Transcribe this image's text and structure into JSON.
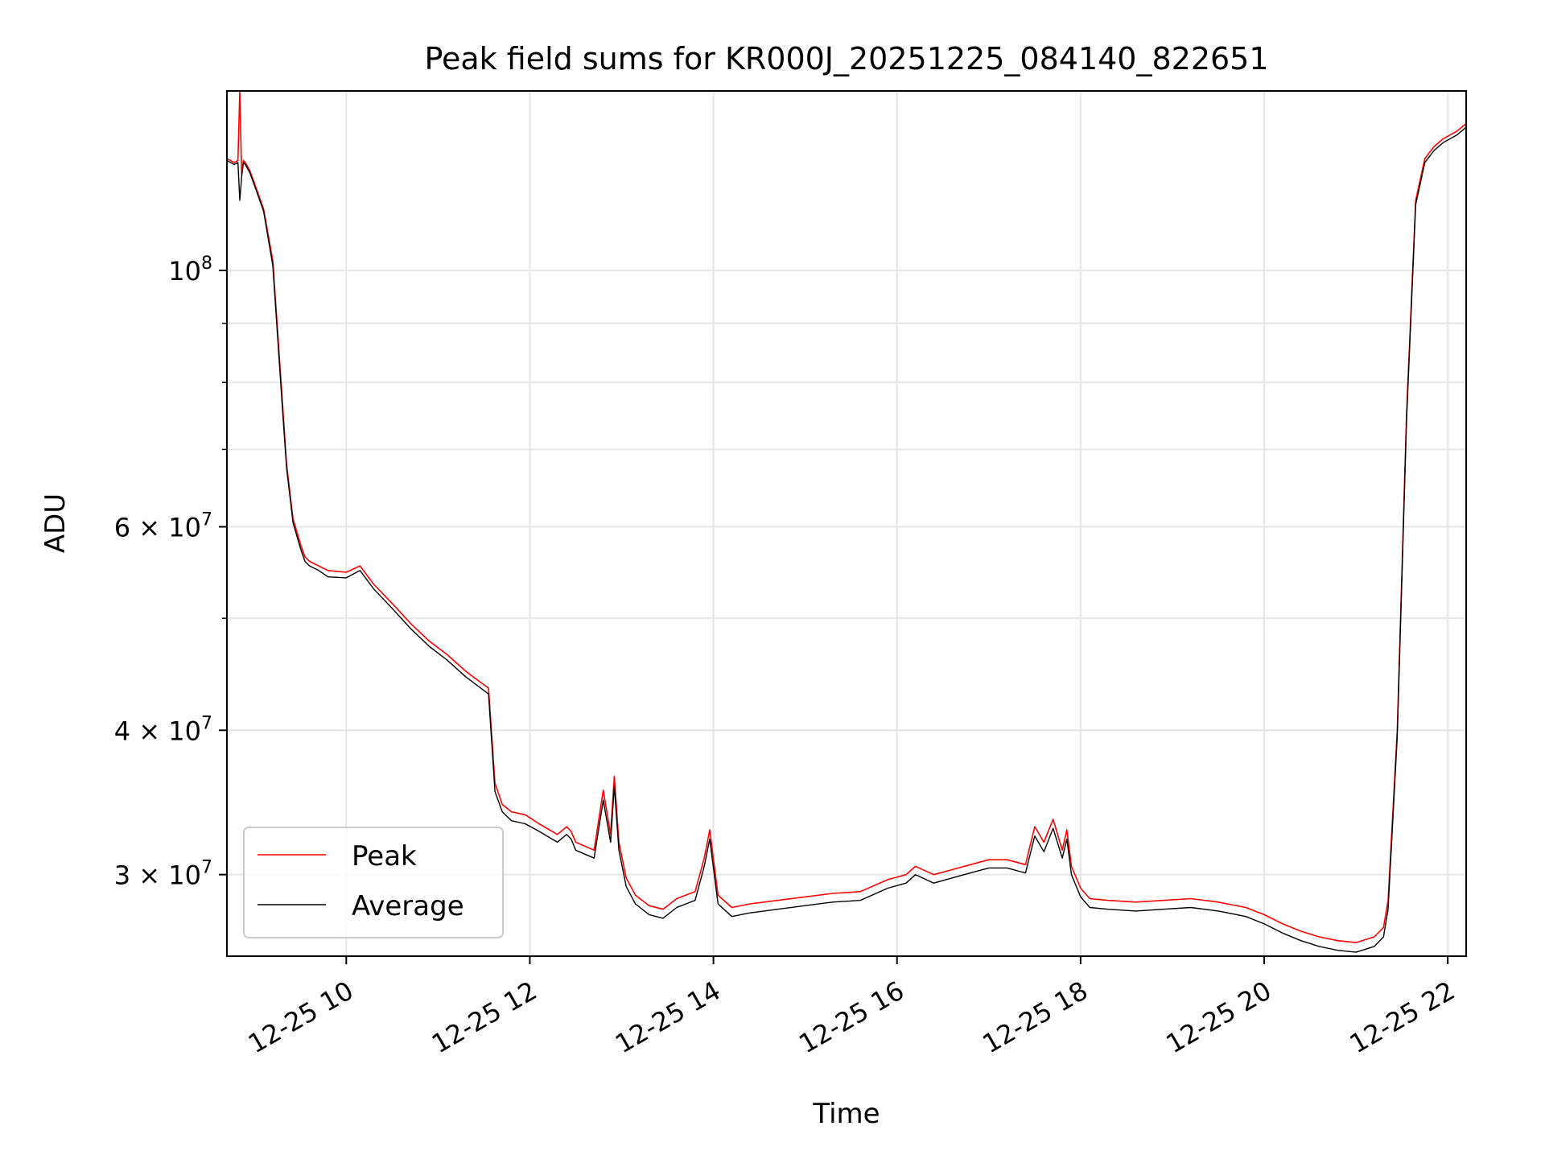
{
  "chart_data": {
    "type": "line",
    "title": "Peak field sums for KR000J_20251225_084140_822651",
    "xlabel": "Time",
    "ylabel": "ADU",
    "yscale": "log",
    "xlim": [
      8.7,
      22.2
    ],
    "ylim": [
      25500000,
      143000000
    ],
    "grid": true,
    "legend_position": "lower-left",
    "x_ticks": [
      {
        "value": 10,
        "label": "12-25 10"
      },
      {
        "value": 12,
        "label": "12-25 12"
      },
      {
        "value": 14,
        "label": "12-25 14"
      },
      {
        "value": 16,
        "label": "12-25 16"
      },
      {
        "value": 18,
        "label": "12-25 18"
      },
      {
        "value": 20,
        "label": "12-25 20"
      },
      {
        "value": 22,
        "label": "12-25 22"
      }
    ],
    "y_ticks_major": [
      {
        "value": 100000000,
        "base": "10",
        "exp": "8"
      },
      {
        "value": 60000000,
        "base": "6 × 10",
        "exp": "7"
      },
      {
        "value": 40000000,
        "base": "4 × 10",
        "exp": "7"
      },
      {
        "value": 30000000,
        "base": "3 × 10",
        "exp": "7"
      }
    ],
    "y_ticks_minor": [
      90000000,
      80000000,
      70000000,
      50000000
    ],
    "series": [
      {
        "name": "Peak",
        "color": "#ff0000",
        "x": [
          8.7,
          8.78,
          8.82,
          8.84,
          8.86,
          8.88,
          8.9,
          8.95,
          9.0,
          9.1,
          9.2,
          9.3,
          9.35,
          9.42,
          9.5,
          9.55,
          9.6,
          9.7,
          9.8,
          10.0,
          10.15,
          10.3,
          10.5,
          10.7,
          10.9,
          11.1,
          11.3,
          11.55,
          11.62,
          11.7,
          11.8,
          11.95,
          12.1,
          12.3,
          12.4,
          12.45,
          12.5,
          12.7,
          12.8,
          12.88,
          12.92,
          12.97,
          13.05,
          13.15,
          13.3,
          13.45,
          13.6,
          13.8,
          13.9,
          13.96,
          14.05,
          14.2,
          14.4,
          14.7,
          15.0,
          15.3,
          15.6,
          15.9,
          16.1,
          16.2,
          16.4,
          16.6,
          16.8,
          17.0,
          17.2,
          17.4,
          17.5,
          17.6,
          17.7,
          17.8,
          17.85,
          17.9,
          18.0,
          18.1,
          18.3,
          18.6,
          18.9,
          19.2,
          19.5,
          19.8,
          20.0,
          20.2,
          20.4,
          20.6,
          20.8,
          21.0,
          21.2,
          21.3,
          21.35,
          21.45,
          21.55,
          21.65,
          21.75,
          21.85,
          21.95,
          22.1,
          22.2
        ],
        "y": [
          125000000,
          124000000,
          124500000,
          143000000,
          121000000,
          124500000,
          124000000,
          122000000,
          119000000,
          113000000,
          102000000,
          78000000,
          68000000,
          61000000,
          58000000,
          56500000,
          56000000,
          55500000,
          55000000,
          54800000,
          55500000,
          53500000,
          51500000,
          49500000,
          47800000,
          46500000,
          45000000,
          43500000,
          36000000,
          34500000,
          34000000,
          33800000,
          33200000,
          32500000,
          33000000,
          32700000,
          32000000,
          31500000,
          35500000,
          32500000,
          36500000,
          32000000,
          29800000,
          28800000,
          28200000,
          28000000,
          28600000,
          29000000,
          31000000,
          32800000,
          28800000,
          28100000,
          28300000,
          28500000,
          28700000,
          28900000,
          29000000,
          29700000,
          30000000,
          30500000,
          30000000,
          30300000,
          30600000,
          30900000,
          30900000,
          30600000,
          33000000,
          32000000,
          33500000,
          31500000,
          32800000,
          30500000,
          29200000,
          28600000,
          28500000,
          28400000,
          28500000,
          28600000,
          28400000,
          28100000,
          27700000,
          27200000,
          26800000,
          26500000,
          26300000,
          26200000,
          26500000,
          27000000,
          28500000,
          40000000,
          75000000,
          115000000,
          125000000,
          128000000,
          130000000,
          132000000,
          134000000
        ]
      },
      {
        "name": "Average",
        "color": "#000000",
        "x": [
          8.7,
          8.78,
          8.82,
          8.84,
          8.86,
          8.88,
          8.9,
          8.95,
          9.0,
          9.1,
          9.2,
          9.3,
          9.35,
          9.42,
          9.5,
          9.55,
          9.6,
          9.7,
          9.8,
          10.0,
          10.15,
          10.3,
          10.5,
          10.7,
          10.9,
          11.1,
          11.3,
          11.55,
          11.62,
          11.7,
          11.8,
          11.95,
          12.1,
          12.3,
          12.4,
          12.45,
          12.5,
          12.7,
          12.8,
          12.88,
          12.92,
          12.97,
          13.05,
          13.15,
          13.3,
          13.45,
          13.6,
          13.8,
          13.9,
          13.96,
          14.05,
          14.2,
          14.4,
          14.7,
          15.0,
          15.3,
          15.6,
          15.9,
          16.1,
          16.2,
          16.4,
          16.6,
          16.8,
          17.0,
          17.2,
          17.4,
          17.5,
          17.6,
          17.7,
          17.8,
          17.85,
          17.9,
          18.0,
          18.1,
          18.3,
          18.6,
          18.9,
          19.2,
          19.5,
          19.8,
          20.0,
          20.2,
          20.4,
          20.6,
          20.8,
          21.0,
          21.2,
          21.3,
          21.35,
          21.45,
          21.55,
          21.65,
          21.75,
          21.85,
          21.95,
          22.1,
          22.2
        ],
        "y": [
          124500000,
          123500000,
          124000000,
          115000000,
          120500000,
          124000000,
          123500000,
          121500000,
          118500000,
          112500000,
          101000000,
          77000000,
          67500000,
          60500000,
          57500000,
          56000000,
          55500000,
          55000000,
          54300000,
          54200000,
          55000000,
          53000000,
          51000000,
          49000000,
          47300000,
          46000000,
          44500000,
          43000000,
          35400000,
          34000000,
          33400000,
          33200000,
          32700000,
          32000000,
          32500000,
          32200000,
          31500000,
          31000000,
          34800000,
          32000000,
          35800000,
          31500000,
          29300000,
          28300000,
          27700000,
          27500000,
          28100000,
          28500000,
          30500000,
          32200000,
          28300000,
          27600000,
          27800000,
          28000000,
          28200000,
          28400000,
          28500000,
          29200000,
          29500000,
          30000000,
          29500000,
          29800000,
          30100000,
          30400000,
          30400000,
          30100000,
          32400000,
          31400000,
          32900000,
          31000000,
          32200000,
          30000000,
          28700000,
          28100000,
          28000000,
          27900000,
          28000000,
          28100000,
          27900000,
          27600000,
          27200000,
          26700000,
          26300000,
          26000000,
          25800000,
          25700000,
          26000000,
          26500000,
          28000000,
          39500000,
          74000000,
          114000000,
          124000000,
          127000000,
          129000000,
          131000000,
          133000000
        ]
      }
    ]
  }
}
